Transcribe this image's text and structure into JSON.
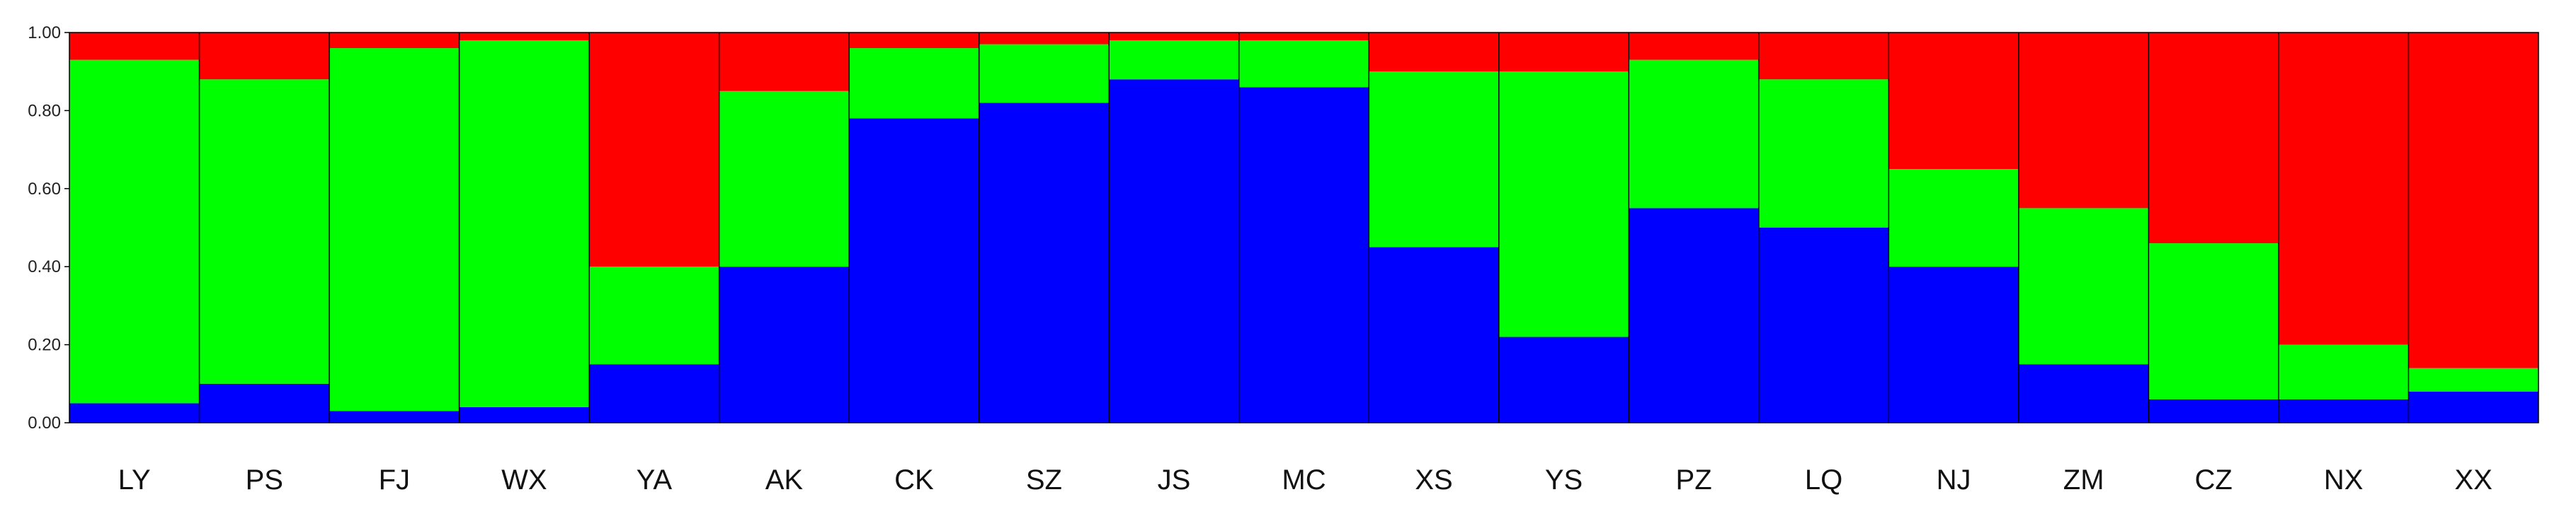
{
  "chart_data": {
    "type": "bar",
    "title": "",
    "xlabel": "",
    "ylabel": "",
    "ylim": [
      0,
      1
    ],
    "y_ticks": [
      "0.00",
      "0.20",
      "0.40",
      "0.60",
      "0.80",
      "1.00"
    ],
    "stacked": true,
    "grid": false,
    "legend": "none",
    "colors": {
      "cluster_1": "#0000ff",
      "cluster_2": "#00ff00",
      "cluster_3": "#ff0000",
      "separator": "#000000"
    },
    "categories": [
      "LY",
      "PS",
      "FJ",
      "WX",
      "YA",
      "AK",
      "CK",
      "SZ",
      "JS",
      "MC",
      "XS",
      "YS",
      "PZ",
      "LQ",
      "NJ",
      "ZM",
      "CZ",
      "NX",
      "XX"
    ],
    "series": [
      {
        "values": [
          0.05,
          0.1,
          0.03,
          0.04,
          0.15,
          0.4,
          0.78,
          0.82,
          0.88,
          0.86,
          0.45,
          0.22,
          0.55,
          0.5,
          0.4,
          0.15,
          0.06,
          0.06,
          0.08
        ]
      },
      {
        "values": [
          0.88,
          0.78,
          0.93,
          0.94,
          0.25,
          0.45,
          0.18,
          0.15,
          0.1,
          0.12,
          0.45,
          0.68,
          0.38,
          0.38,
          0.25,
          0.4,
          0.4,
          0.14,
          0.06
        ]
      },
      {
        "values": [
          0.07,
          0.12,
          0.04,
          0.02,
          0.6,
          0.15,
          0.04,
          0.03,
          0.02,
          0.02,
          0.1,
          0.1,
          0.07,
          0.12,
          0.35,
          0.45,
          0.54,
          0.8,
          0.86
        ]
      }
    ]
  }
}
